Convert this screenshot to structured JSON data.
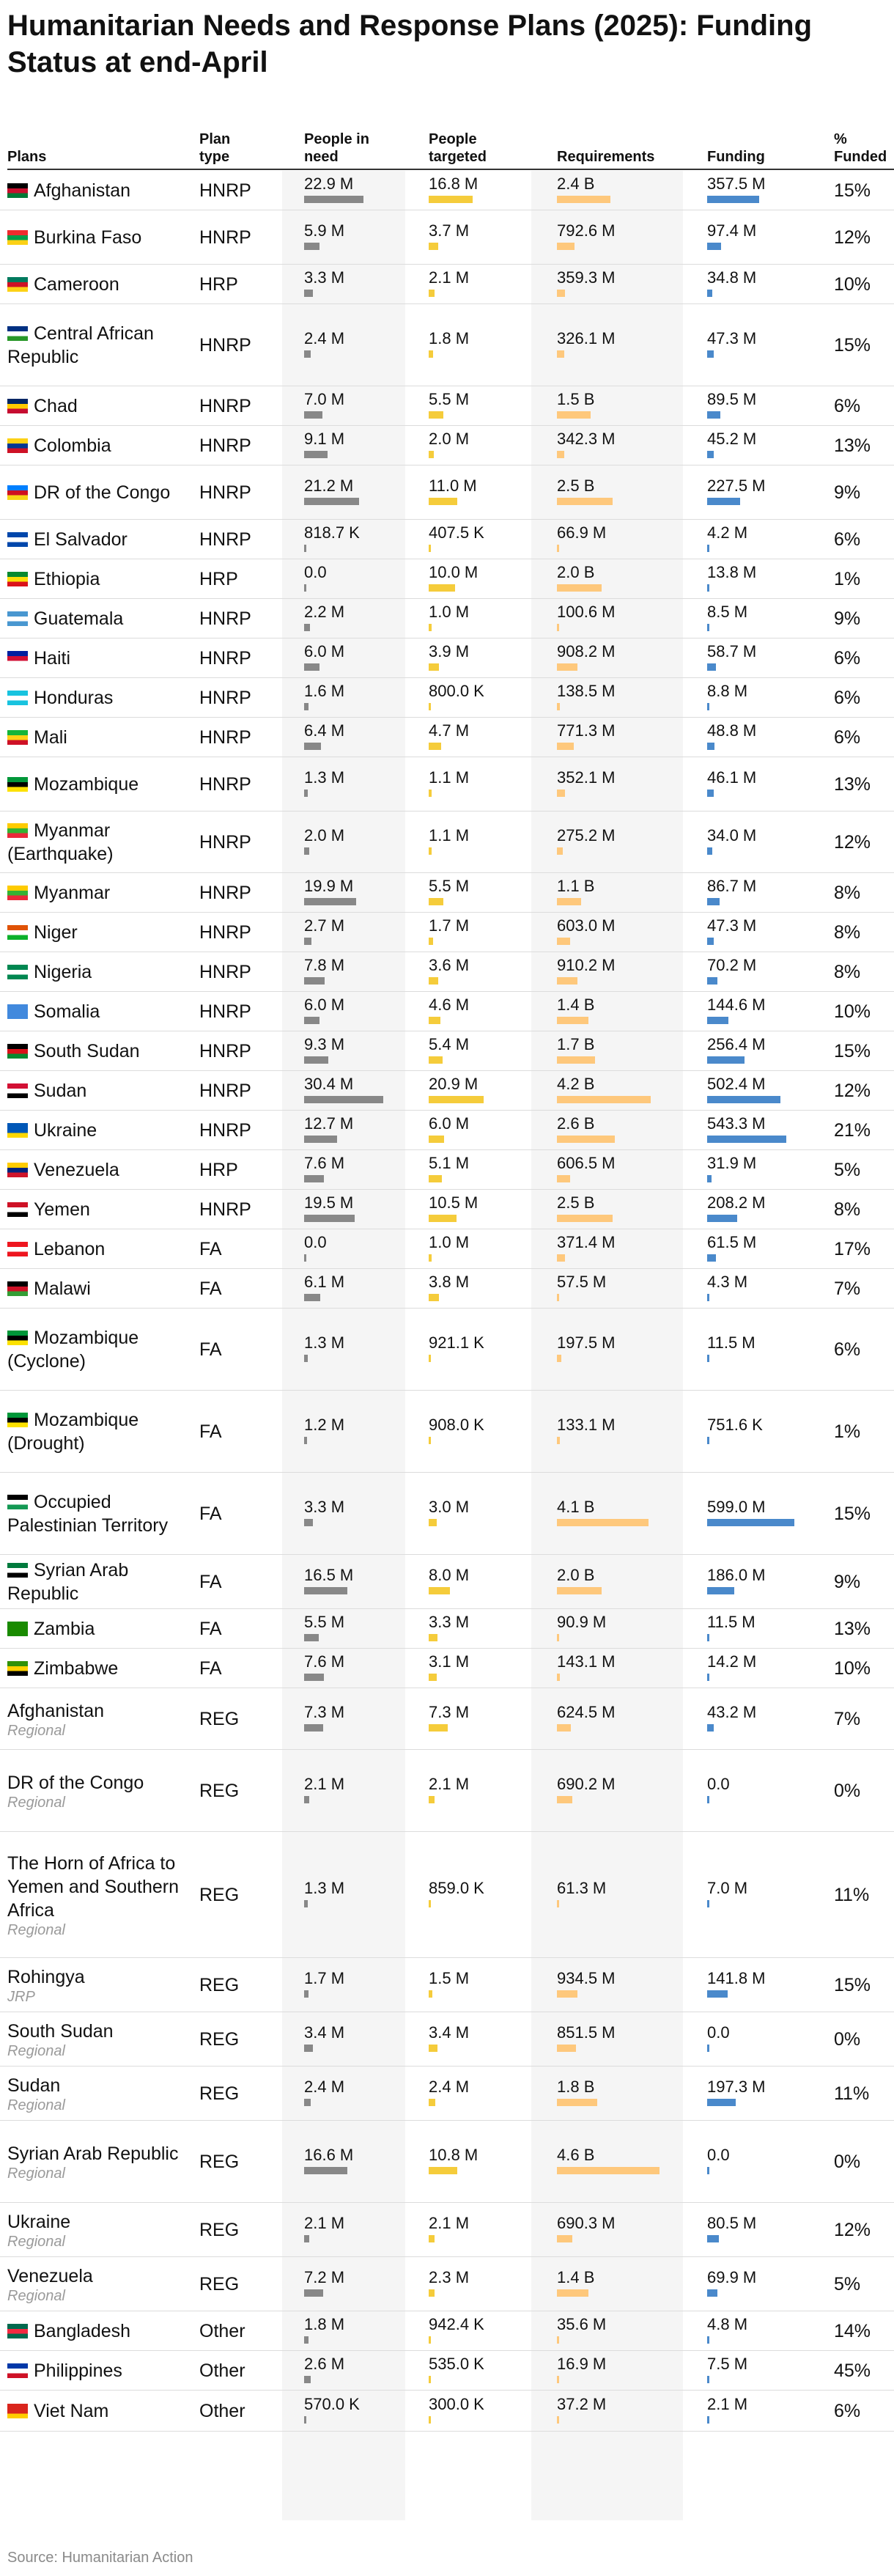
{
  "title": "Humanitarian Needs and Response Plans (2025): Funding Status at end-April",
  "source": "Source: Humanitarian Action",
  "colors": {
    "need": "#888888",
    "targeted": "#f5cc3b",
    "requirements": "#fec87c",
    "funding": "#4a89cb"
  },
  "headers": {
    "plan": "Plans",
    "type": "Plan type",
    "need": "People in need",
    "targeted": "People targeted",
    "requirements": "Requirements",
    "funding": "Funding",
    "pct": "% Funded"
  },
  "chart_data": {
    "type": "table",
    "title": "Humanitarian Needs and Response Plans (2025): Funding Status at end-April",
    "columns": [
      "Plans",
      "Plan type",
      "People in need",
      "People targeted",
      "Requirements",
      "Funding",
      "% Funded"
    ],
    "rows": [
      {
        "plan": "Afghanistan",
        "sub": "",
        "type": "HNRP",
        "need": "22.9 M",
        "need_v": 22.9,
        "targeted": "16.8 M",
        "targeted_v": 16.8,
        "requirements": "2.4 B",
        "requirements_v": 2400,
        "funding": "357.5 M",
        "funding_v": 357.5,
        "pct": "15%",
        "flag": [
          "#000000",
          "#c8102e",
          "#007a36"
        ]
      },
      {
        "plan": "Burkina Faso",
        "sub": "",
        "type": "HNRP",
        "need": "5.9 M",
        "need_v": 5.9,
        "targeted": "3.7 M",
        "targeted_v": 3.7,
        "requirements": "792.6 M",
        "requirements_v": 792.6,
        "funding": "97.4 M",
        "funding_v": 97.4,
        "pct": "12%",
        "flag": [
          "#ef2b2d",
          "#009e49",
          "#fcd116"
        ]
      },
      {
        "plan": "Cameroon",
        "sub": "",
        "type": "HRP",
        "need": "3.3 M",
        "need_v": 3.3,
        "targeted": "2.1 M",
        "targeted_v": 2.1,
        "requirements": "359.3 M",
        "requirements_v": 359.3,
        "funding": "34.8 M",
        "funding_v": 34.8,
        "pct": "10%",
        "flag": [
          "#007a5e",
          "#ce1126",
          "#fcd116"
        ]
      },
      {
        "plan": "Central African Republic",
        "sub": "",
        "type": "HNRP",
        "need": "2.4 M",
        "need_v": 2.4,
        "targeted": "1.8 M",
        "targeted_v": 1.8,
        "requirements": "326.1 M",
        "requirements_v": 326.1,
        "funding": "47.3 M",
        "funding_v": 47.3,
        "pct": "15%",
        "flag": [
          "#003082",
          "#ffffff",
          "#289728"
        ]
      },
      {
        "plan": "Chad",
        "sub": "",
        "type": "HNRP",
        "need": "7.0 M",
        "need_v": 7.0,
        "targeted": "5.5 M",
        "targeted_v": 5.5,
        "requirements": "1.5 B",
        "requirements_v": 1500,
        "funding": "89.5 M",
        "funding_v": 89.5,
        "pct": "6%",
        "flag": [
          "#002664",
          "#fecb00",
          "#c60c30"
        ]
      },
      {
        "plan": "Colombia",
        "sub": "",
        "type": "HNRP",
        "need": "9.1 M",
        "need_v": 9.1,
        "targeted": "2.0 M",
        "targeted_v": 2.0,
        "requirements": "342.3 M",
        "requirements_v": 342.3,
        "funding": "45.2 M",
        "funding_v": 45.2,
        "pct": "13%",
        "flag": [
          "#fcd116",
          "#003893",
          "#ce1126"
        ]
      },
      {
        "plan": "DR of the Congo",
        "sub": "",
        "type": "HNRP",
        "need": "21.2 M",
        "need_v": 21.2,
        "targeted": "11.0 M",
        "targeted_v": 11.0,
        "requirements": "2.5 B",
        "requirements_v": 2500,
        "funding": "227.5 M",
        "funding_v": 227.5,
        "pct": "9%",
        "flag": [
          "#007fff",
          "#ce1021",
          "#f7d618"
        ]
      },
      {
        "plan": "El Salvador",
        "sub": "",
        "type": "HNRP",
        "need": "818.7 K",
        "need_v": 0.8187,
        "targeted": "407.5 K",
        "targeted_v": 0.4075,
        "requirements": "66.9 M",
        "requirements_v": 66.9,
        "funding": "4.2 M",
        "funding_v": 4.2,
        "pct": "6%",
        "flag": [
          "#0047ab",
          "#ffffff",
          "#0047ab"
        ]
      },
      {
        "plan": "Ethiopia",
        "sub": "",
        "type": "HRP",
        "need": "0.0",
        "need_v": 0,
        "targeted": "10.0 M",
        "targeted_v": 10.0,
        "requirements": "2.0 B",
        "requirements_v": 2000,
        "funding": "13.8 M",
        "funding_v": 13.8,
        "pct": "1%",
        "flag": [
          "#078930",
          "#fcdd09",
          "#da121a"
        ]
      },
      {
        "plan": "Guatemala",
        "sub": "",
        "type": "HNRP",
        "need": "2.2 M",
        "need_v": 2.2,
        "targeted": "1.0 M",
        "targeted_v": 1.0,
        "requirements": "100.6 M",
        "requirements_v": 100.6,
        "funding": "8.5 M",
        "funding_v": 8.5,
        "pct": "9%",
        "flag": [
          "#4997d0",
          "#ffffff",
          "#4997d0"
        ]
      },
      {
        "plan": "Haiti",
        "sub": "",
        "type": "HNRP",
        "need": "6.0 M",
        "need_v": 6.0,
        "targeted": "3.9 M",
        "targeted_v": 3.9,
        "requirements": "908.2 M",
        "requirements_v": 908.2,
        "funding": "58.7 M",
        "funding_v": 58.7,
        "pct": "6%",
        "flag": [
          "#00209f",
          "#d21034",
          "#ffffff"
        ]
      },
      {
        "plan": "Honduras",
        "sub": "",
        "type": "HNRP",
        "need": "1.6 M",
        "need_v": 1.6,
        "targeted": "800.0 K",
        "targeted_v": 0.8,
        "requirements": "138.5 M",
        "requirements_v": 138.5,
        "funding": "8.8 M",
        "funding_v": 8.8,
        "pct": "6%",
        "flag": [
          "#18c3df",
          "#ffffff",
          "#18c3df"
        ]
      },
      {
        "plan": "Mali",
        "sub": "",
        "type": "HNRP",
        "need": "6.4 M",
        "need_v": 6.4,
        "targeted": "4.7 M",
        "targeted_v": 4.7,
        "requirements": "771.3 M",
        "requirements_v": 771.3,
        "funding": "48.8 M",
        "funding_v": 48.8,
        "pct": "6%",
        "flag": [
          "#14b53a",
          "#fcd116",
          "#ce1126"
        ]
      },
      {
        "plan": "Mozambique",
        "sub": "",
        "type": "HNRP",
        "need": "1.3 M",
        "need_v": 1.3,
        "targeted": "1.1 M",
        "targeted_v": 1.1,
        "requirements": "352.1 M",
        "requirements_v": 352.1,
        "funding": "46.1 M",
        "funding_v": 46.1,
        "pct": "13%",
        "flag": [
          "#009739",
          "#000000",
          "#fce100"
        ]
      },
      {
        "plan": "Myanmar (Earthquake)",
        "sub": "",
        "type": "HNRP",
        "need": "2.0 M",
        "need_v": 2.0,
        "targeted": "1.1 M",
        "targeted_v": 1.1,
        "requirements": "275.2 M",
        "requirements_v": 275.2,
        "funding": "34.0 M",
        "funding_v": 34.0,
        "pct": "12%",
        "flag": [
          "#fecb00",
          "#34b233",
          "#ea2839"
        ]
      },
      {
        "plan": "Myanmar",
        "sub": "",
        "type": "HNRP",
        "need": "19.9 M",
        "need_v": 19.9,
        "targeted": "5.5 M",
        "targeted_v": 5.5,
        "requirements": "1.1 B",
        "requirements_v": 1100,
        "funding": "86.7 M",
        "funding_v": 86.7,
        "pct": "8%",
        "flag": [
          "#fecb00",
          "#34b233",
          "#ea2839"
        ]
      },
      {
        "plan": "Niger",
        "sub": "",
        "type": "HNRP",
        "need": "2.7 M",
        "need_v": 2.7,
        "targeted": "1.7 M",
        "targeted_v": 1.7,
        "requirements": "603.0 M",
        "requirements_v": 603.0,
        "funding": "47.3 M",
        "funding_v": 47.3,
        "pct": "8%",
        "flag": [
          "#e05206",
          "#ffffff",
          "#0db02b"
        ]
      },
      {
        "plan": "Nigeria",
        "sub": "",
        "type": "HNRP",
        "need": "7.8 M",
        "need_v": 7.8,
        "targeted": "3.6 M",
        "targeted_v": 3.6,
        "requirements": "910.2 M",
        "requirements_v": 910.2,
        "funding": "70.2 M",
        "funding_v": 70.2,
        "pct": "8%",
        "flag": [
          "#008751",
          "#ffffff",
          "#008751"
        ]
      },
      {
        "plan": "Somalia",
        "sub": "",
        "type": "HNRP",
        "need": "6.0 M",
        "need_v": 6.0,
        "targeted": "4.6 M",
        "targeted_v": 4.6,
        "requirements": "1.4 B",
        "requirements_v": 1400,
        "funding": "144.6 M",
        "funding_v": 144.6,
        "pct": "10%",
        "flag": [
          "#4189dd",
          "#4189dd",
          "#4189dd"
        ]
      },
      {
        "plan": "South Sudan",
        "sub": "",
        "type": "HNRP",
        "need": "9.3 M",
        "need_v": 9.3,
        "targeted": "5.4 M",
        "targeted_v": 5.4,
        "requirements": "1.7 B",
        "requirements_v": 1700,
        "funding": "256.4 M",
        "funding_v": 256.4,
        "pct": "15%",
        "flag": [
          "#000000",
          "#da121a",
          "#078930"
        ]
      },
      {
        "plan": "Sudan",
        "sub": "",
        "type": "HNRP",
        "need": "30.4 M",
        "need_v": 30.4,
        "targeted": "20.9 M",
        "targeted_v": 20.9,
        "requirements": "4.2 B",
        "requirements_v": 4200,
        "funding": "502.4 M",
        "funding_v": 502.4,
        "pct": "12%",
        "flag": [
          "#d21034",
          "#ffffff",
          "#000000"
        ]
      },
      {
        "plan": "Ukraine",
        "sub": "",
        "type": "HNRP",
        "need": "12.7 M",
        "need_v": 12.7,
        "targeted": "6.0 M",
        "targeted_v": 6.0,
        "requirements": "2.6 B",
        "requirements_v": 2600,
        "funding": "543.3 M",
        "funding_v": 543.3,
        "pct": "21%",
        "flag": [
          "#0057b7",
          "#0057b7",
          "#ffd700"
        ]
      },
      {
        "plan": "Venezuela",
        "sub": "",
        "type": "HRP",
        "need": "7.6 M",
        "need_v": 7.6,
        "targeted": "5.1 M",
        "targeted_v": 5.1,
        "requirements": "606.5 M",
        "requirements_v": 606.5,
        "funding": "31.9 M",
        "funding_v": 31.9,
        "pct": "5%",
        "flag": [
          "#ffcc00",
          "#00247d",
          "#cf142b"
        ]
      },
      {
        "plan": "Yemen",
        "sub": "",
        "type": "HNRP",
        "need": "19.5 M",
        "need_v": 19.5,
        "targeted": "10.5 M",
        "targeted_v": 10.5,
        "requirements": "2.5 B",
        "requirements_v": 2500,
        "funding": "208.2 M",
        "funding_v": 208.2,
        "pct": "8%",
        "flag": [
          "#ce1126",
          "#ffffff",
          "#000000"
        ]
      },
      {
        "plan": "Lebanon",
        "sub": "",
        "type": "FA",
        "need": "0.0",
        "need_v": 0,
        "targeted": "1.0 M",
        "targeted_v": 1.0,
        "requirements": "371.4 M",
        "requirements_v": 371.4,
        "funding": "61.5 M",
        "funding_v": 61.5,
        "pct": "17%",
        "flag": [
          "#ee161f",
          "#ffffff",
          "#ee161f"
        ]
      },
      {
        "plan": "Malawi",
        "sub": "",
        "type": "FA",
        "need": "6.1 M",
        "need_v": 6.1,
        "targeted": "3.8 M",
        "targeted_v": 3.8,
        "requirements": "57.5 M",
        "requirements_v": 57.5,
        "funding": "4.3 M",
        "funding_v": 4.3,
        "pct": "7%",
        "flag": [
          "#000000",
          "#ce1126",
          "#339e35"
        ]
      },
      {
        "plan": "Mozambique (Cyclone)",
        "sub": "",
        "type": "FA",
        "need": "1.3 M",
        "need_v": 1.3,
        "targeted": "921.1 K",
        "targeted_v": 0.9211,
        "requirements": "197.5 M",
        "requirements_v": 197.5,
        "funding": "11.5 M",
        "funding_v": 11.5,
        "pct": "6%",
        "flag": [
          "#009739",
          "#000000",
          "#fce100"
        ]
      },
      {
        "plan": "Mozambique (Drought)",
        "sub": "",
        "type": "FA",
        "need": "1.2 M",
        "need_v": 1.2,
        "targeted": "908.0 K",
        "targeted_v": 0.908,
        "requirements": "133.1 M",
        "requirements_v": 133.1,
        "funding": "751.6 K",
        "funding_v": 0.7516,
        "pct": "1%",
        "flag": [
          "#009739",
          "#000000",
          "#fce100"
        ]
      },
      {
        "plan": "Occupied Palestinian Territory",
        "sub": "",
        "type": "FA",
        "need": "3.3 M",
        "need_v": 3.3,
        "targeted": "3.0 M",
        "targeted_v": 3.0,
        "requirements": "4.1 B",
        "requirements_v": 4100,
        "funding": "599.0 M",
        "funding_v": 599.0,
        "pct": "15%",
        "flag": [
          "#000000",
          "#ffffff",
          "#149954"
        ]
      },
      {
        "plan": "Syrian Arab Republic",
        "sub": "",
        "type": "FA",
        "need": "16.5 M",
        "need_v": 16.5,
        "targeted": "8.0 M",
        "targeted_v": 8.0,
        "requirements": "2.0 B",
        "requirements_v": 2000,
        "funding": "186.0 M",
        "funding_v": 186.0,
        "pct": "9%",
        "flag": [
          "#007a3d",
          "#ffffff",
          "#000000"
        ]
      },
      {
        "plan": "Zambia",
        "sub": "",
        "type": "FA",
        "need": "5.5 M",
        "need_v": 5.5,
        "targeted": "3.3 M",
        "targeted_v": 3.3,
        "requirements": "90.9 M",
        "requirements_v": 90.9,
        "funding": "11.5 M",
        "funding_v": 11.5,
        "pct": "13%",
        "flag": [
          "#198a00",
          "#198a00",
          "#198a00"
        ]
      },
      {
        "plan": "Zimbabwe",
        "sub": "",
        "type": "FA",
        "need": "7.6 M",
        "need_v": 7.6,
        "targeted": "3.1 M",
        "targeted_v": 3.1,
        "requirements": "143.1 M",
        "requirements_v": 143.1,
        "funding": "14.2 M",
        "funding_v": 14.2,
        "pct": "10%",
        "flag": [
          "#319208",
          "#ffd200",
          "#000000"
        ]
      },
      {
        "plan": "Afghanistan",
        "sub": "Regional",
        "type": "REG",
        "need": "7.3 M",
        "need_v": 7.3,
        "targeted": "7.3 M",
        "targeted_v": 7.3,
        "requirements": "624.5 M",
        "requirements_v": 624.5,
        "funding": "43.2 M",
        "funding_v": 43.2,
        "pct": "7%"
      },
      {
        "plan": "DR of the Congo",
        "sub": "Regional",
        "type": "REG",
        "need": "2.1 M",
        "need_v": 2.1,
        "targeted": "2.1 M",
        "targeted_v": 2.1,
        "requirements": "690.2 M",
        "requirements_v": 690.2,
        "funding": "0.0",
        "funding_v": 0,
        "pct": "0%"
      },
      {
        "plan": "The Horn of Africa to Yemen and Southern Africa",
        "sub": "Regional",
        "type": "REG",
        "need": "1.3 M",
        "need_v": 1.3,
        "targeted": "859.0 K",
        "targeted_v": 0.859,
        "requirements": "61.3 M",
        "requirements_v": 61.3,
        "funding": "7.0 M",
        "funding_v": 7.0,
        "pct": "11%"
      },
      {
        "plan": "Rohingya",
        "sub": "JRP",
        "type": "REG",
        "need": "1.7 M",
        "need_v": 1.7,
        "targeted": "1.5 M",
        "targeted_v": 1.5,
        "requirements": "934.5 M",
        "requirements_v": 934.5,
        "funding": "141.8 M",
        "funding_v": 141.8,
        "pct": "15%"
      },
      {
        "plan": "South Sudan",
        "sub": "Regional",
        "type": "REG",
        "need": "3.4 M",
        "need_v": 3.4,
        "targeted": "3.4 M",
        "targeted_v": 3.4,
        "requirements": "851.5 M",
        "requirements_v": 851.5,
        "funding": "0.0",
        "funding_v": 0,
        "pct": "0%"
      },
      {
        "plan": "Sudan",
        "sub": "Regional",
        "type": "REG",
        "need": "2.4 M",
        "need_v": 2.4,
        "targeted": "2.4 M",
        "targeted_v": 2.4,
        "requirements": "1.8 B",
        "requirements_v": 1800,
        "funding": "197.3 M",
        "funding_v": 197.3,
        "pct": "11%"
      },
      {
        "plan": "Syrian Arab Republic",
        "sub": "Regional",
        "type": "REG",
        "need": "16.6 M",
        "need_v": 16.6,
        "targeted": "10.8 M",
        "targeted_v": 10.8,
        "requirements": "4.6 B",
        "requirements_v": 4600,
        "funding": "0.0",
        "funding_v": 0,
        "pct": "0%"
      },
      {
        "plan": "Ukraine",
        "sub": "Regional",
        "type": "REG",
        "need": "2.1 M",
        "need_v": 2.1,
        "targeted": "2.1 M",
        "targeted_v": 2.1,
        "requirements": "690.3 M",
        "requirements_v": 690.3,
        "funding": "80.5 M",
        "funding_v": 80.5,
        "pct": "12%"
      },
      {
        "plan": "Venezuela",
        "sub": "Regional",
        "type": "REG",
        "need": "7.2 M",
        "need_v": 7.2,
        "targeted": "2.3 M",
        "targeted_v": 2.3,
        "requirements": "1.4 B",
        "requirements_v": 1400,
        "funding": "69.9 M",
        "funding_v": 69.9,
        "pct": "5%"
      },
      {
        "plan": "Bangladesh",
        "sub": "",
        "type": "Other",
        "need": "1.8 M",
        "need_v": 1.8,
        "targeted": "942.4 K",
        "targeted_v": 0.9424,
        "requirements": "35.6 M",
        "requirements_v": 35.6,
        "funding": "4.8 M",
        "funding_v": 4.8,
        "pct": "14%",
        "flag": [
          "#006a4e",
          "#f42a41",
          "#006a4e"
        ]
      },
      {
        "plan": "Philippines",
        "sub": "",
        "type": "Other",
        "need": "2.6 M",
        "need_v": 2.6,
        "targeted": "535.0 K",
        "targeted_v": 0.535,
        "requirements": "16.9 M",
        "requirements_v": 16.9,
        "funding": "7.5 M",
        "funding_v": 7.5,
        "pct": "45%",
        "flag": [
          "#0038a8",
          "#ffffff",
          "#ce1126"
        ]
      },
      {
        "plan": "Viet Nam",
        "sub": "",
        "type": "Other",
        "need": "570.0 K",
        "need_v": 0.57,
        "targeted": "300.0 K",
        "targeted_v": 0.3,
        "requirements": "37.2 M",
        "requirements_v": 37.2,
        "funding": "2.1 M",
        "funding_v": 2.1,
        "pct": "6%",
        "flag": [
          "#da251d",
          "#da251d",
          "#ffcd00"
        ]
      }
    ]
  }
}
